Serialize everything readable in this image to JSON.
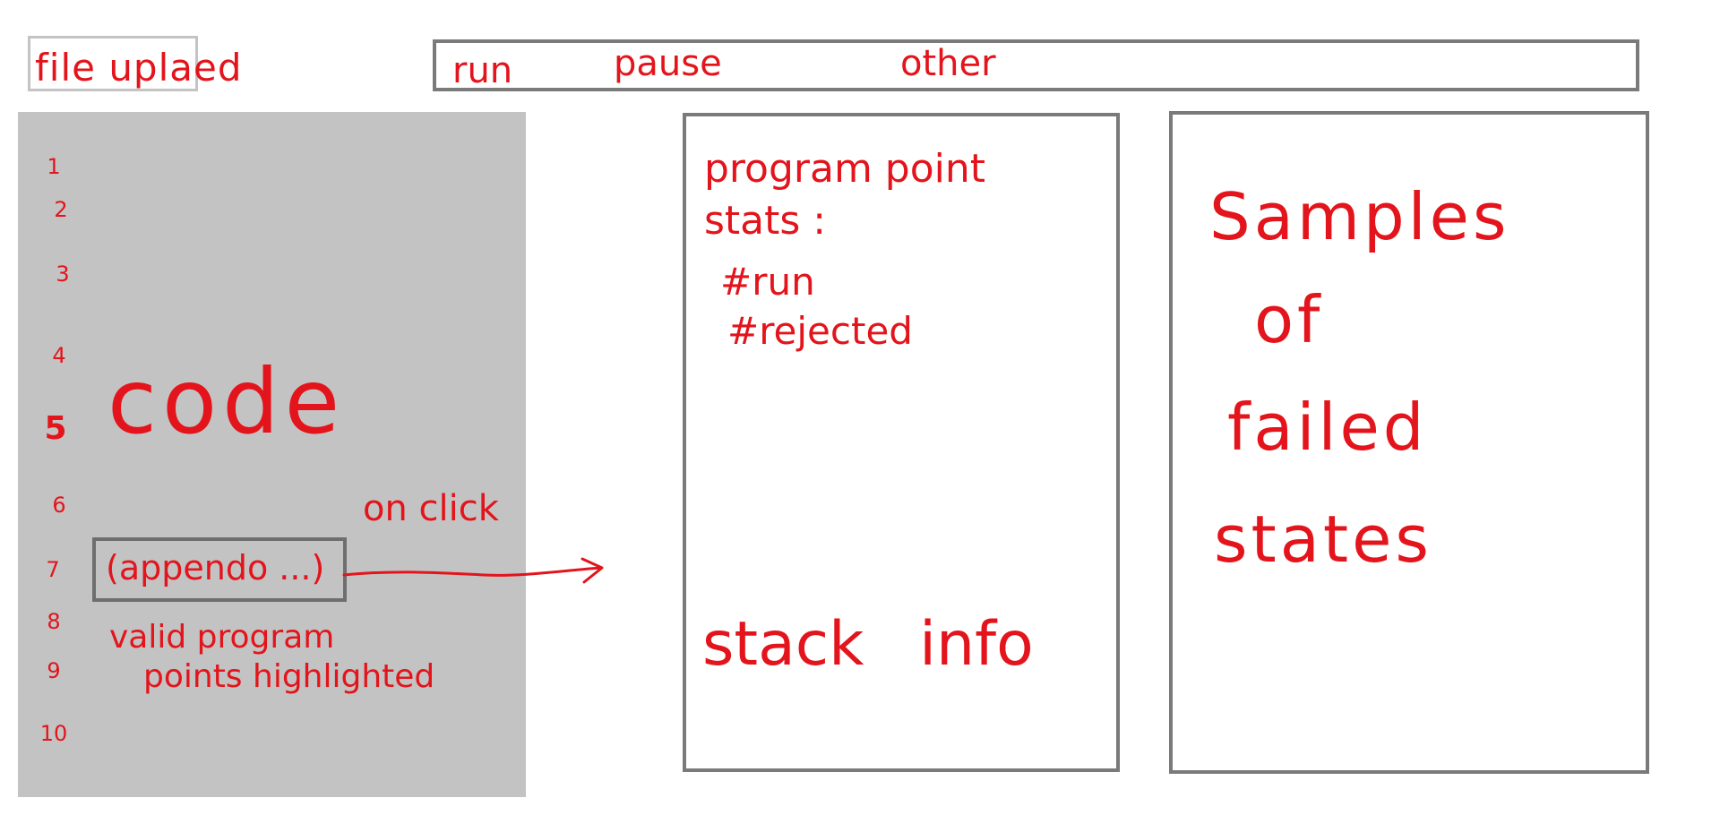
{
  "file_upload": {
    "label": "file uplaed"
  },
  "toolbar": {
    "run": "run",
    "pause": "pause",
    "other": "other"
  },
  "code_panel": {
    "line_numbers": [
      "1",
      "2",
      "3",
      "4",
      "5",
      "6",
      "7",
      "8",
      "9",
      "10"
    ],
    "label": "code",
    "snippet": "(appendo ...)",
    "on_click_note": "on click",
    "valid_note_line1": "valid program",
    "valid_note_line2": "points highlighted"
  },
  "stats_panel": {
    "title": "program point stats :",
    "run": "#run",
    "rejected": "#rejected",
    "stack": "stack info"
  },
  "samples_panel": {
    "word1": "Samples",
    "word2": "of",
    "word3": "failed",
    "word4": "states"
  },
  "colors": {
    "ink": "#e3141b",
    "code_bg": "#c3c3c3",
    "border": "#7a7a7a"
  }
}
